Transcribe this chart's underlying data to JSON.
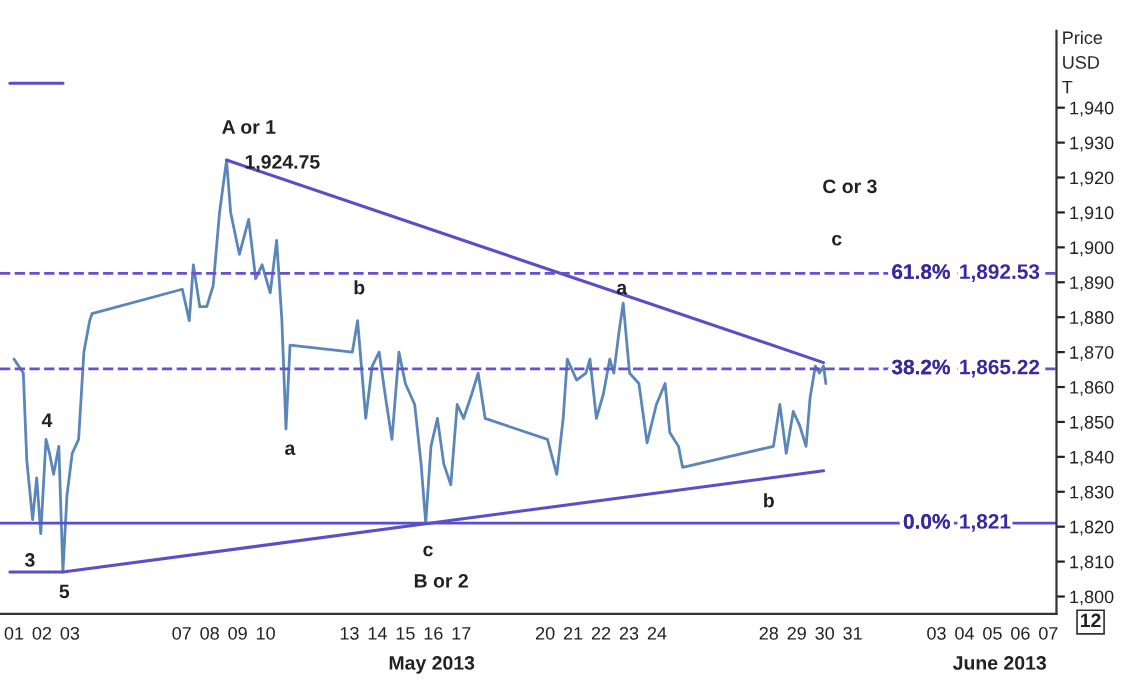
{
  "chart_data": {
    "type": "line",
    "ylabel": "Price\nUSD\nT",
    "xlim": [
      "2013-04-30T12:00",
      "2013-06-07T07:00"
    ],
    "ylim": [
      1795,
      1962
    ],
    "xticks": [
      {
        "value": "2013-05-01",
        "label": "01"
      },
      {
        "value": "2013-05-02",
        "label": "02"
      },
      {
        "value": "2013-05-03",
        "label": "03"
      },
      {
        "value": "2013-05-07",
        "label": "07"
      },
      {
        "value": "2013-05-08",
        "label": "08"
      },
      {
        "value": "2013-05-09",
        "label": "09"
      },
      {
        "value": "2013-05-10",
        "label": "10"
      },
      {
        "value": "2013-05-13",
        "label": "13"
      },
      {
        "value": "2013-05-14",
        "label": "14"
      },
      {
        "value": "2013-05-15",
        "label": "15"
      },
      {
        "value": "2013-05-16",
        "label": "16"
      },
      {
        "value": "2013-05-17",
        "label": "17"
      },
      {
        "value": "2013-05-20",
        "label": "20"
      },
      {
        "value": "2013-05-21",
        "label": "21"
      },
      {
        "value": "2013-05-22",
        "label": "22"
      },
      {
        "value": "2013-05-23",
        "label": "23"
      },
      {
        "value": "2013-05-24",
        "label": "24"
      },
      {
        "value": "2013-05-28",
        "label": "28"
      },
      {
        "value": "2013-05-29",
        "label": "29"
      },
      {
        "value": "2013-05-30",
        "label": "30"
      },
      {
        "value": "2013-05-31",
        "label": "31"
      },
      {
        "value": "2013-06-03",
        "label": "03"
      },
      {
        "value": "2013-06-04",
        "label": "04"
      },
      {
        "value": "2013-06-05",
        "label": "05"
      },
      {
        "value": "2013-06-06",
        "label": "06"
      },
      {
        "value": "2013-06-07",
        "label": "07"
      }
    ],
    "yticks": [
      {
        "value": 1800,
        "label": "1,800"
      },
      {
        "value": 1810,
        "label": "1,810"
      },
      {
        "value": 1820,
        "label": "1,820"
      },
      {
        "value": 1830,
        "label": "1,830"
      },
      {
        "value": 1840,
        "label": "1,840"
      },
      {
        "value": 1850,
        "label": "1,850"
      },
      {
        "value": 1860,
        "label": "1,860"
      },
      {
        "value": 1870,
        "label": "1,870"
      },
      {
        "value": 1880,
        "label": "1,880"
      },
      {
        "value": 1890,
        "label": "1,890"
      },
      {
        "value": 1900,
        "label": "1,900"
      },
      {
        "value": 1910,
        "label": "1,910"
      },
      {
        "value": 1920,
        "label": "1,920"
      },
      {
        "value": 1930,
        "label": "1,930"
      },
      {
        "value": 1940,
        "label": "1,940"
      }
    ],
    "grid": false,
    "legend": false,
    "marker": "none",
    "line_style": "solid",
    "series": [
      {
        "color": "#5b86b8",
        "x": [
          "2013-05-01T00:00",
          "2013-05-01T08:00",
          "2013-05-01T11:00",
          "2013-05-01T16:00",
          "2013-05-01T19:30",
          "2013-05-01T23:00",
          "2013-05-02T03:30",
          "2013-05-02T06:30",
          "2013-05-02T10:00",
          "2013-05-02T14:30",
          "2013-05-02T18:00",
          "2013-05-02T21:30",
          "2013-05-03T02:00",
          "2013-05-03T07:30",
          "2013-05-03T12:00",
          "2013-05-03T17:00",
          "2013-05-03T19:00",
          "2013-05-07T00:30",
          "2013-05-07T06:30",
          "2013-05-07T10:00",
          "2013-05-07T15:30",
          "2013-05-07T21:30",
          "2013-05-08T03:00",
          "2013-05-08T08:30",
          "2013-05-08T14:30",
          "2013-05-08T18:00",
          "2013-05-09T01:30",
          "2013-05-09T09:30",
          "2013-05-09T15:30",
          "2013-05-09T21:00",
          "2013-05-10T04:00",
          "2013-05-10T09:30",
          "2013-05-10T14:00",
          "2013-05-10T17:30",
          "2013-05-10T21:00",
          "2013-05-13T02:30",
          "2013-05-13T07:00",
          "2013-05-13T14:00",
          "2013-05-13T19:30",
          "2013-05-14T01:30",
          "2013-05-14T07:00",
          "2013-05-14T12:30",
          "2013-05-14T18:30",
          "2013-05-15T00:00",
          "2013-05-15T08:00",
          "2013-05-15T13:30",
          "2013-05-15T17:30",
          "2013-05-15T22:00",
          "2013-05-16T03:30",
          "2013-05-16T09:00",
          "2013-05-16T15:00",
          "2013-05-16T20:30",
          "2013-05-17T02:00",
          "2013-05-17T09:00",
          "2013-05-17T14:30",
          "2013-05-17T20:30",
          "2013-05-20T02:00",
          "2013-05-20T10:00",
          "2013-05-20T15:30",
          "2013-05-20T19:00",
          "2013-05-21T03:00",
          "2013-05-21T11:00",
          "2013-05-21T14:30",
          "2013-05-21T20:00",
          "2013-05-22T02:00",
          "2013-05-22T07:30",
          "2013-05-22T11:00",
          "2013-05-22T15:30",
          "2013-05-22T19:00",
          "2013-05-23T00:30",
          "2013-05-23T08:30",
          "2013-05-23T15:30",
          "2013-05-23T23:30",
          "2013-05-24T07:00",
          "2013-05-24T11:00",
          "2013-05-24T18:30",
          "2013-05-24T22:00",
          "2013-05-28T04:00",
          "2013-05-28T09:30",
          "2013-05-28T15:00",
          "2013-05-28T21:00",
          "2013-05-29T02:30",
          "2013-05-29T08:00",
          "2013-05-29T11:30",
          "2013-05-29T16:00",
          "2013-05-29T19:30",
          "2013-05-29T23:00",
          "2013-05-30T01:00"
        ],
        "values": [
          1868,
          1864,
          1839,
          1822,
          1834,
          1818,
          1845,
          1841,
          1835,
          1843,
          1807,
          1829,
          1841,
          1845,
          1870,
          1879,
          1881,
          1888,
          1879,
          1895,
          1883,
          1883,
          1889,
          1910,
          1925,
          1910,
          1898,
          1908,
          1891,
          1895,
          1887,
          1902,
          1879,
          1848,
          1872,
          1870,
          1879,
          1851,
          1866,
          1870,
          1857,
          1845,
          1870,
          1861,
          1855,
          1838,
          1821,
          1843,
          1851,
          1838,
          1832,
          1855,
          1851,
          1858,
          1864,
          1851,
          1845,
          1835,
          1851,
          1868,
          1862,
          1864,
          1868,
          1851,
          1858,
          1868,
          1864,
          1876,
          1884,
          1864,
          1861,
          1844,
          1855,
          1861,
          1847,
          1843,
          1837,
          1843,
          1855,
          1841,
          1853,
          1849,
          1843,
          1857,
          1866,
          1864,
          1866,
          1861
        ]
      },
      {
        "color": "#5a4fc8",
        "x": [
          "2013-05-08T14:30",
          "2013-05-29T23:00"
        ],
        "values": [
          1925,
          1867
        ]
      },
      {
        "color": "#5a4fc8",
        "x": [
          "2013-04-30T20:30",
          "2013-05-02T18:00",
          "2013-05-29T23:00"
        ],
        "values": [
          1807,
          1807,
          1836
        ]
      },
      {
        "color": "#5a4fc8",
        "x": [
          "2013-04-30T20:30",
          "2013-05-02T18:00"
        ],
        "values": [
          1947,
          1947
        ]
      }
    ],
    "ref_lines": [
      {
        "axis": "y",
        "value": 1892.53,
        "label": "1,892.53",
        "color": "#6a4fd0",
        "line_style": "dashed"
      },
      {
        "axis": "y",
        "value": 1865.22,
        "label": "1,865.22",
        "color": "#6a4fd0",
        "line_style": "dashed"
      },
      {
        "axis": "y",
        "value": 1821,
        "label": "1,821",
        "color": "#5a4fc8",
        "line_style": "solid"
      }
    ],
    "annotations": [
      "A or 1",
      "1,924.75",
      "3",
      "4",
      "5",
      "a",
      "b",
      "c",
      "B or 2",
      "a",
      "b",
      "c",
      "C or 3",
      {
        "text": "61.8%",
        "x": "2013-06-03T12:00",
        "y": 1892.53
      },
      {
        "text": "38.2%",
        "x": "2013-06-03T12:00",
        "y": 1865.22
      },
      {
        "text": "0.0%",
        "x": "2013-06-03T12:00",
        "y": 1821
      },
      "May 2013",
      "June 2013",
      "12"
    ]
  }
}
